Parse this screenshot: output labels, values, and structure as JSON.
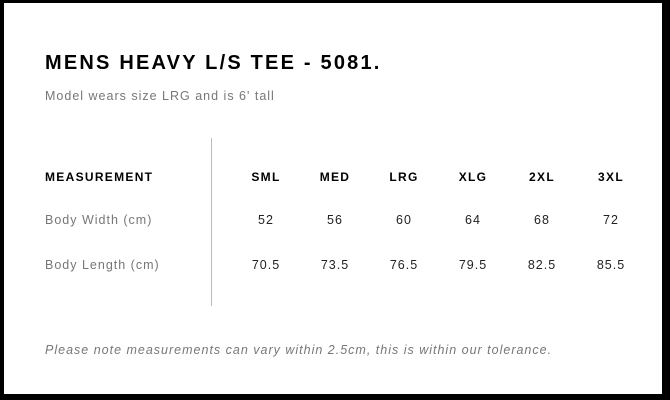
{
  "title": "MENS HEAVY L/S TEE - 5081.",
  "subtitle": "Model wears size LRG and is 6' tall",
  "table": {
    "header": "MEASUREMENT",
    "sizes": [
      "SML",
      "MED",
      "LRG",
      "XLG",
      "2XL",
      "3XL"
    ],
    "rows": [
      {
        "label": "Body Width (cm)",
        "values": [
          "52",
          "56",
          "60",
          "64",
          "68",
          "72"
        ]
      },
      {
        "label": "Body Length (cm)",
        "values": [
          "70.5",
          "73.5",
          "76.5",
          "79.5",
          "82.5",
          "85.5"
        ]
      }
    ]
  },
  "note": "Please note measurements can vary within 2.5cm, this is within our tolerance."
}
